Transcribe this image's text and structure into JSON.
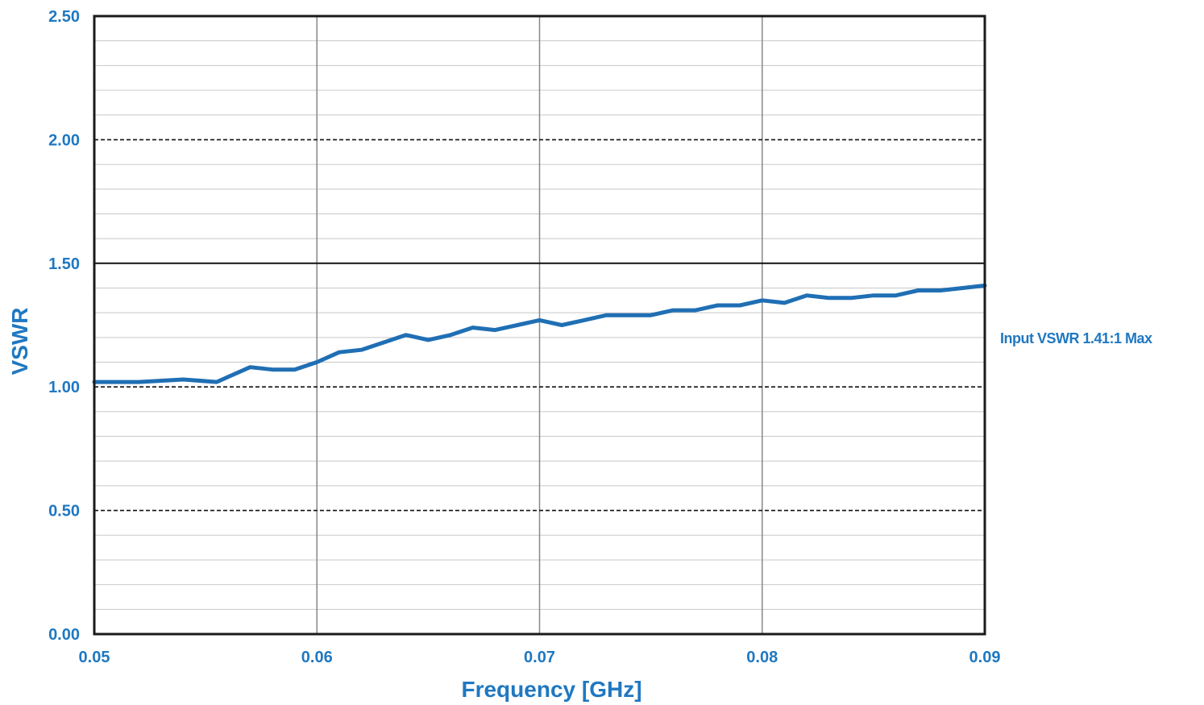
{
  "colors": {
    "text_accent": "#1f78c1",
    "series_line": "#1f6fb4",
    "major_grid": "#888888",
    "minor_grid": "#c8c8c8",
    "plot_border": "#1a1a1a"
  },
  "chart_data": {
    "type": "line",
    "title": "",
    "xlabel": "Frequency [GHz]",
    "ylabel": "VSWR",
    "xlim": [
      0.05,
      0.09
    ],
    "ylim": [
      0,
      2.5
    ],
    "x_ticks": [
      "0.05",
      "0.06",
      "0.07",
      "0.08",
      "0.09"
    ],
    "y_ticks": [
      "0.00",
      "0.50",
      "1.00",
      "1.50",
      "2.00",
      "2.50"
    ],
    "minor_y_step": 0.1,
    "limit_lines": [
      0.5,
      1.0,
      2.0
    ],
    "reference_line": 1.5,
    "grid": true,
    "annotation": "Input VSWR 1.41:1 Max",
    "series": [
      {
        "x": [
          0.05,
          0.052,
          0.054,
          0.0555,
          0.056,
          0.057,
          0.058,
          0.059,
          0.06,
          0.061,
          0.062,
          0.063,
          0.064,
          0.065,
          0.066,
          0.067,
          0.068,
          0.069,
          0.07,
          0.071,
          0.072,
          0.073,
          0.074,
          0.075,
          0.076,
          0.077,
          0.078,
          0.079,
          0.08,
          0.081,
          0.082,
          0.083,
          0.084,
          0.085,
          0.086,
          0.087,
          0.088,
          0.089,
          0.09
        ],
        "y": [
          1.02,
          1.02,
          1.03,
          1.02,
          1.04,
          1.08,
          1.07,
          1.07,
          1.1,
          1.14,
          1.15,
          1.18,
          1.21,
          1.19,
          1.21,
          1.24,
          1.23,
          1.25,
          1.27,
          1.25,
          1.27,
          1.29,
          1.29,
          1.29,
          1.31,
          1.31,
          1.33,
          1.33,
          1.35,
          1.34,
          1.37,
          1.36,
          1.36,
          1.37,
          1.37,
          1.39,
          1.39,
          1.4,
          1.41
        ]
      }
    ]
  }
}
